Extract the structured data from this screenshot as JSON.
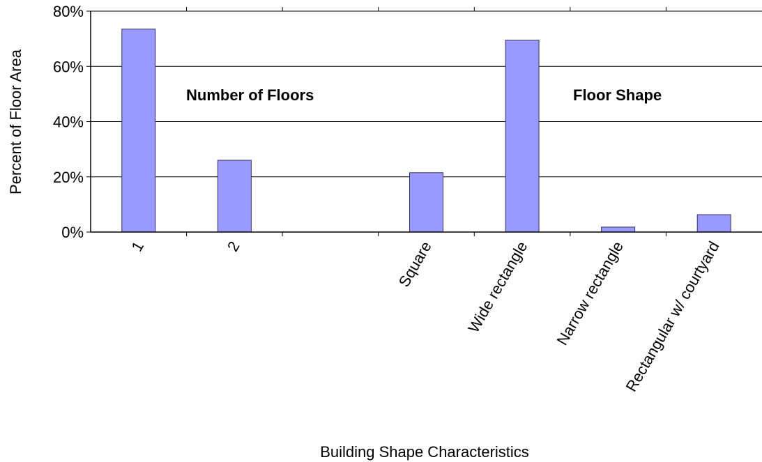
{
  "chart_data": {
    "type": "bar",
    "title": "",
    "xlabel": "Building Shape Characteristics",
    "ylabel": "Percent of Floor Area",
    "categories": [
      "1",
      "2",
      "",
      "Square",
      "Wide rectangle",
      "Narrow rectangle",
      "Rectangular w/ courtyard"
    ],
    "values": [
      73.5,
      26,
      null,
      21.5,
      69.5,
      1.8,
      6.3
    ],
    "ylim": [
      0,
      80
    ],
    "yticks": [
      0,
      20,
      40,
      60,
      80
    ],
    "ytick_labels": [
      "0%",
      "20%",
      "40%",
      "60%",
      "80%"
    ],
    "grid": true,
    "legend": "none",
    "annotations": [
      "Number of Floors",
      "Floor Shape"
    ],
    "colors": {
      "bar_fill": "#9999ff",
      "bar_stroke": "#333366",
      "grid": "#000000",
      "axis": "#000000"
    }
  }
}
